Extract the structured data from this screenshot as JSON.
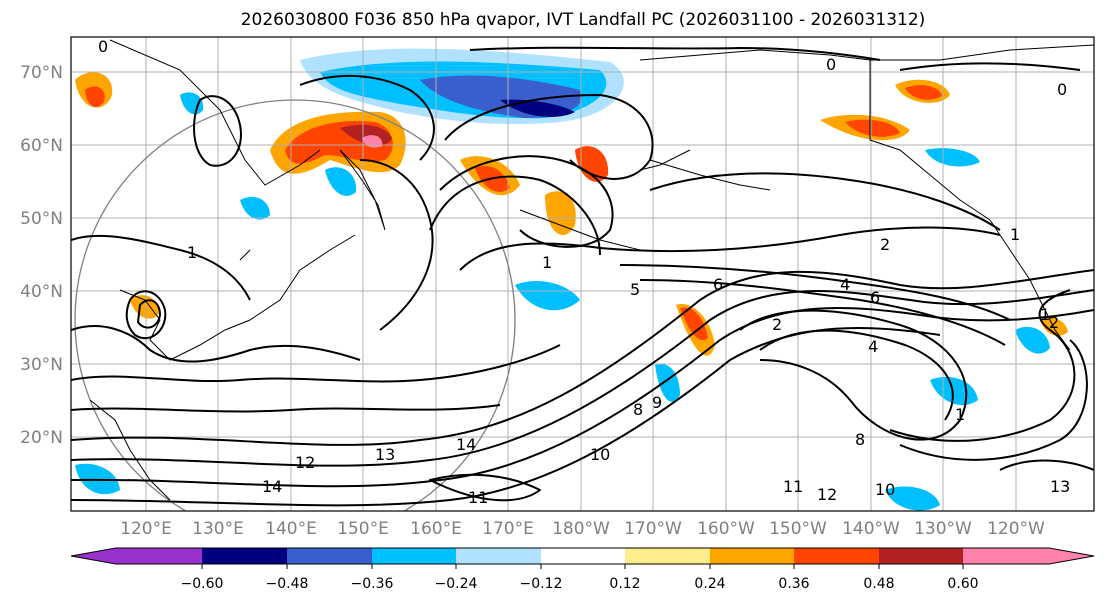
{
  "title": "2026030800 F036 850 hPa qvapor, IVT Landfall PC (2026031100 - 2026031312)",
  "lat_labels": [
    "70°N",
    "60°N",
    "50°N",
    "40°N",
    "30°N",
    "20°N"
  ],
  "lon_labels": [
    "120°E",
    "130°E",
    "140°E",
    "150°E",
    "160°E",
    "170°E",
    "180°W",
    "170°W",
    "160°W",
    "150°W",
    "140°W",
    "130°W",
    "120°W"
  ],
  "colorbar": {
    "ticks": [
      "−0.60",
      "−0.48",
      "−0.36",
      "−0.24",
      "−0.12",
      "0.12",
      "0.24",
      "0.36",
      "0.48",
      "0.60"
    ],
    "colors": [
      "#9932cc",
      "#000080",
      "#3a5fcd",
      "#00bfff",
      "#b0e2ff",
      "#ffffff",
      "#ffec8b",
      "#ffa500",
      "#ff4500",
      "#b22222",
      "#ff82ab"
    ]
  },
  "contour_labels": [
    "0",
    "0",
    "0",
    "1",
    "2",
    "2",
    "4",
    "4",
    "5",
    "6",
    "6",
    "8",
    "8",
    "9",
    "10",
    "10",
    "11",
    "11",
    "12",
    "12",
    "13",
    "13",
    "14",
    "14",
    "1",
    "1",
    "1",
    "1",
    "2"
  ]
}
